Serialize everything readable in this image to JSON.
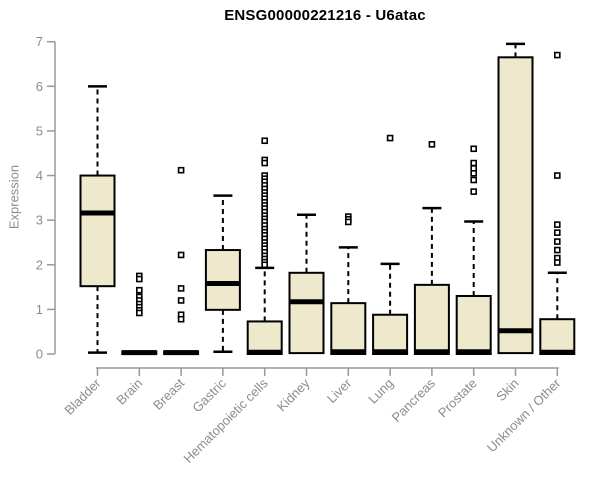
{
  "page": {
    "background_color": "#ffffff"
  },
  "chart_data": {
    "type": "boxplot",
    "title": "ENSG00000221216 - U6atac",
    "ylabel": "Expression",
    "xlabel": "",
    "ylim": [
      0,
      7
    ],
    "yticks": [
      0,
      1,
      2,
      3,
      4,
      5,
      6,
      7
    ],
    "grid": false,
    "legend": "none",
    "colors": {
      "box_fill": "#EEE8CD",
      "box_stroke": "#000000",
      "median": "#000000",
      "whisker": "#000000",
      "outlier_fill": "#ffffff",
      "outlier_stroke": "#000000",
      "axis_line": "#999999",
      "tick_text": "#8c8c8c",
      "title_text": "#000000"
    },
    "categories": [
      "Bladder",
      "Brain",
      "Breast",
      "Gastric",
      "Hematopoietic cells",
      "Kidney",
      "Liver",
      "Lung",
      "Pancreas",
      "Prostate",
      "Skin",
      "Unknown / Other"
    ],
    "series": [
      {
        "name": "Bladder",
        "low": 0.03,
        "q1": 1.52,
        "median": 3.16,
        "q3": 4.0,
        "high": 6.0,
        "outliers": []
      },
      {
        "name": "Brain",
        "low": 0.0,
        "q1": 0.0,
        "median": 0.03,
        "q3": 0.06,
        "high": 0.06,
        "outliers": [
          1.75,
          1.68,
          1.43,
          1.28,
          1.2,
          1.12,
          1.05,
          0.98,
          0.92
        ]
      },
      {
        "name": "Breast",
        "low": 0.0,
        "q1": 0.0,
        "median": 0.03,
        "q3": 0.06,
        "high": 0.06,
        "outliers": [
          4.12,
          2.22,
          1.47,
          1.2,
          0.88,
          0.78
        ]
      },
      {
        "name": "Gastric",
        "low": 0.05,
        "q1": 0.99,
        "median": 1.58,
        "q3": 2.33,
        "high": 3.55,
        "outliers": []
      },
      {
        "name": "Hematopoietic cells",
        "low": 0.0,
        "q1": 0.0,
        "median": 0.04,
        "q3": 0.73,
        "high": 1.93,
        "outliers": [
          4.78,
          4.35,
          4.28,
          4.0,
          3.93,
          3.86,
          3.78,
          3.7,
          3.62,
          3.55,
          3.48,
          3.4,
          3.33,
          3.26,
          3.18,
          3.1,
          3.03,
          2.96,
          2.88,
          2.8,
          2.73,
          2.66,
          2.58,
          2.5,
          2.43,
          2.36,
          2.28,
          2.2,
          2.13,
          2.06,
          2.0
        ]
      },
      {
        "name": "Kidney",
        "low": 0.02,
        "q1": 0.02,
        "median": 1.17,
        "q3": 1.82,
        "high": 3.12,
        "outliers": []
      },
      {
        "name": "Liver",
        "low": 0.0,
        "q1": 0.0,
        "median": 0.05,
        "q3": 1.14,
        "high": 2.39,
        "outliers": [
          3.08,
          3.02,
          2.96
        ]
      },
      {
        "name": "Lung",
        "low": 0.0,
        "q1": 0.0,
        "median": 0.05,
        "q3": 0.88,
        "high": 2.02,
        "outliers": [
          4.84
        ]
      },
      {
        "name": "Pancreas",
        "low": 0.0,
        "q1": 0.0,
        "median": 0.05,
        "q3": 1.55,
        "high": 3.27,
        "outliers": [
          4.7
        ]
      },
      {
        "name": "Prostate",
        "low": 0.0,
        "q1": 0.0,
        "median": 0.05,
        "q3": 1.3,
        "high": 2.97,
        "outliers": [
          4.6,
          4.28,
          4.16,
          4.05,
          3.9,
          3.64
        ]
      },
      {
        "name": "Skin",
        "low": 0.02,
        "q1": 0.02,
        "median": 0.52,
        "q3": 6.65,
        "high": 6.95,
        "outliers": []
      },
      {
        "name": "Unknown / Other",
        "low": 0.0,
        "q1": 0.0,
        "median": 0.04,
        "q3": 0.78,
        "high": 1.82,
        "outliers": [
          6.7,
          4.0,
          2.9,
          2.72,
          2.52,
          2.33,
          2.15,
          2.05
        ]
      }
    ]
  }
}
